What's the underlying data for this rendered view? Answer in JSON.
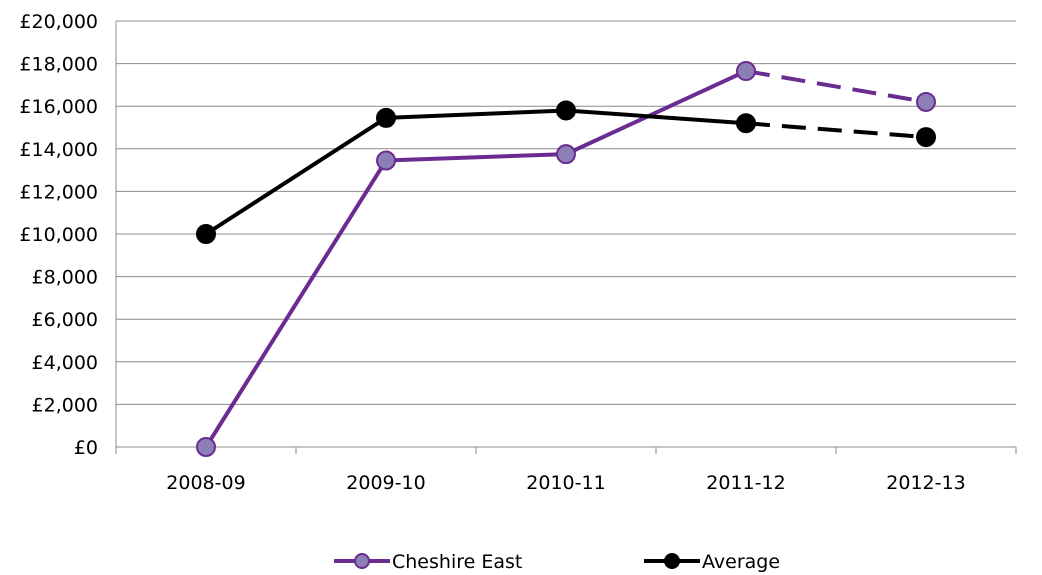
{
  "chart_data": {
    "type": "line",
    "categories": [
      "2008-09",
      "2009-10",
      "2010-11",
      "2011-12",
      "2012-13"
    ],
    "series": [
      {
        "name": "Cheshire East",
        "values": [
          0,
          13450,
          13750,
          17650,
          16200
        ],
        "color": "#6b2c91",
        "marker_fill": "#8b7fb6",
        "dashed_from_index": 3
      },
      {
        "name": "Average",
        "values": [
          10000,
          15450,
          15800,
          15200,
          14550
        ],
        "color": "#000000",
        "marker_fill": "#000000",
        "dashed_from_index": 3
      }
    ],
    "y_ticks": [
      "£0",
      "£2,000",
      "£4,000",
      "£6,000",
      "£8,000",
      "£10,000",
      "£12,000",
      "£14,000",
      "£16,000",
      "£18,000",
      "£20,000"
    ],
    "ylim": [
      0,
      20000
    ],
    "y_step": 2000,
    "grid": true,
    "legend_position": "bottom"
  }
}
